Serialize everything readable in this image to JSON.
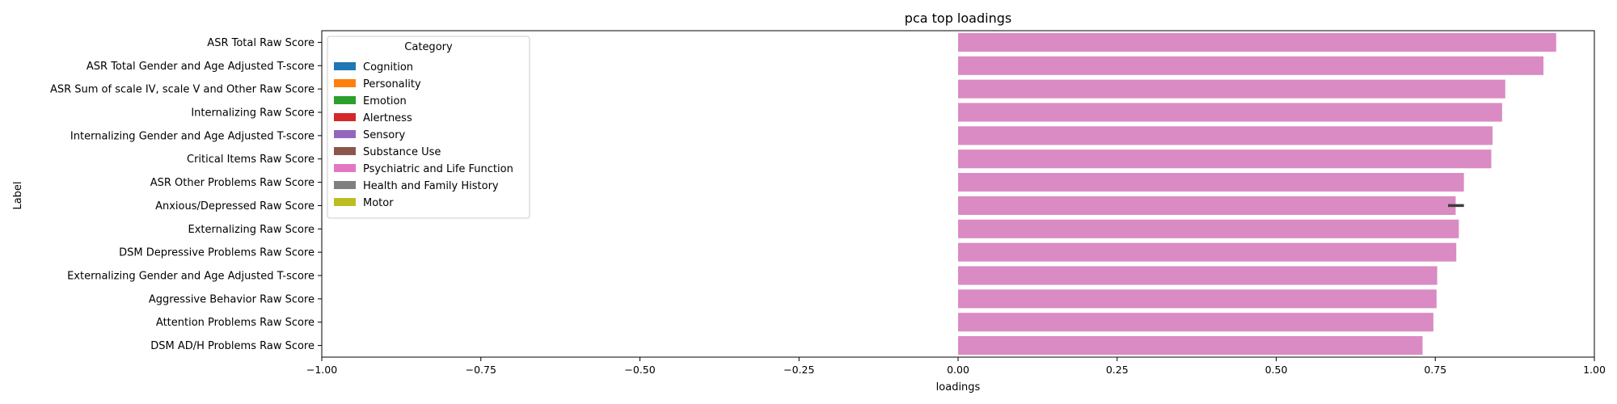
{
  "chart_data": {
    "type": "bar",
    "orientation": "horizontal",
    "title": "pca top loadings",
    "xlabel": "loadings",
    "ylabel": "Label",
    "xlim": [
      -1.0,
      1.0
    ],
    "x_ticks": [
      -1.0,
      -0.75,
      -0.5,
      -0.25,
      0.0,
      0.25,
      0.5,
      0.75,
      1.0
    ],
    "x_tick_labels": [
      "−1.00",
      "−0.75",
      "−0.50",
      "−0.25",
      "0.00",
      "0.25",
      "0.50",
      "0.75",
      "1.00"
    ],
    "grid": false,
    "bar_color": "#DA8BC3",
    "categories": [
      "ASR Total Raw Score",
      "ASR Total Gender and Age Adjusted T-score",
      "ASR Sum of scale IV, scale  V and Other Raw Score",
      "Internalizing Raw Score",
      "Internalizing  Gender and Age Adjusted T-score",
      "Critical Items Raw Score",
      "ASR Other Problems Raw Score",
      "Anxious/Depressed Raw Score",
      "Externalizing Raw Score",
      "DSM Depressive Problems Raw Score",
      "Externalizing Gender and Age Adjusted T-score",
      "Aggressive Behavior Raw Score",
      "Attention Problems Raw Score",
      "DSM AD/H Problems Raw Score"
    ],
    "values": [
      0.94,
      0.92,
      0.86,
      0.855,
      0.84,
      0.838,
      0.795,
      0.782,
      0.787,
      0.783,
      0.753,
      0.752,
      0.747,
      0.73
    ],
    "error_bar": {
      "category_index": 7,
      "low": 0.77,
      "high": 0.795
    },
    "legend": {
      "title": "Category",
      "placement": "upper-left",
      "entries": [
        {
          "label": "Cognition",
          "color": "#1F77B4"
        },
        {
          "label": "Personality",
          "color": "#FF7F0E"
        },
        {
          "label": "Emotion",
          "color": "#2CA02C"
        },
        {
          "label": "Alertness",
          "color": "#D62728"
        },
        {
          "label": "Sensory",
          "color": "#9467BD"
        },
        {
          "label": "Substance Use",
          "color": "#8C564B"
        },
        {
          "label": "Psychiatric and Life Function",
          "color": "#E377C2"
        },
        {
          "label": "Health and Family History",
          "color": "#7F7F7F"
        },
        {
          "label": "Motor",
          "color": "#BCBD22"
        }
      ]
    }
  }
}
